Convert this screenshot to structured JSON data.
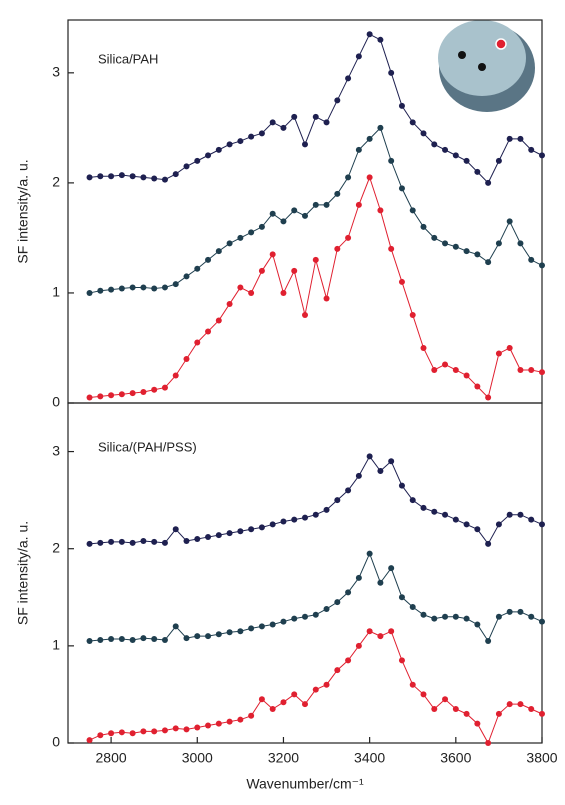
{
  "chart_data": [
    {
      "type": "line",
      "annotation": "Silica/PAH",
      "ylabel": "SF intensity/a. u.",
      "xlim": [
        2700,
        3800
      ],
      "ylim": [
        0,
        3.48
      ],
      "yticks": [
        0,
        1,
        2,
        3
      ],
      "x": [
        2750,
        2775,
        2800,
        2825,
        2850,
        2875,
        2900,
        2925,
        2950,
        2975,
        3000,
        3025,
        3050,
        3075,
        3100,
        3125,
        3150,
        3175,
        3200,
        3225,
        3250,
        3275,
        3300,
        3325,
        3350,
        3375,
        3400,
        3425,
        3450,
        3475,
        3500,
        3525,
        3550,
        3575,
        3600,
        3625,
        3650,
        3675,
        3700,
        3725,
        3750,
        3775,
        3800
      ],
      "series": [
        {
          "color": "#1e2050",
          "values": [
            2.05,
            2.06,
            2.06,
            2.07,
            2.06,
            2.05,
            2.04,
            2.03,
            2.08,
            2.15,
            2.2,
            2.25,
            2.3,
            2.35,
            2.38,
            2.42,
            2.45,
            2.55,
            2.5,
            2.6,
            2.35,
            2.6,
            2.55,
            2.75,
            2.95,
            3.15,
            3.35,
            3.3,
            3.0,
            2.7,
            2.55,
            2.45,
            2.35,
            2.3,
            2.25,
            2.2,
            2.1,
            2.0,
            2.2,
            2.4,
            2.4,
            2.3,
            2.25
          ]
        },
        {
          "color": "#1f3f4f",
          "values": [
            1.0,
            1.02,
            1.03,
            1.04,
            1.05,
            1.05,
            1.04,
            1.05,
            1.08,
            1.15,
            1.22,
            1.3,
            1.38,
            1.45,
            1.5,
            1.55,
            1.6,
            1.72,
            1.65,
            1.75,
            1.7,
            1.8,
            1.8,
            1.9,
            2.05,
            2.3,
            2.4,
            2.5,
            2.2,
            1.95,
            1.75,
            1.6,
            1.5,
            1.45,
            1.42,
            1.38,
            1.35,
            1.28,
            1.45,
            1.65,
            1.45,
            1.3,
            1.25
          ]
        },
        {
          "color": "#e02030",
          "values": [
            0.05,
            0.06,
            0.07,
            0.08,
            0.09,
            0.1,
            0.12,
            0.14,
            0.25,
            0.4,
            0.55,
            0.65,
            0.75,
            0.9,
            1.05,
            1.0,
            1.2,
            1.35,
            1.0,
            1.2,
            0.8,
            1.3,
            0.95,
            1.4,
            1.5,
            1.8,
            2.05,
            1.75,
            1.4,
            1.1,
            0.8,
            0.5,
            0.3,
            0.35,
            0.3,
            0.25,
            0.15,
            0.05,
            0.45,
            0.5,
            0.3,
            0.3,
            0.28
          ]
        }
      ]
    },
    {
      "type": "line",
      "annotation": "Silica/(PAH/PSS)",
      "ylabel": "SF intensity/a. u.",
      "xlabel": "Wavenumber/cm⁻¹",
      "xlim": [
        2700,
        3800
      ],
      "ylim": [
        0,
        3.5
      ],
      "yticks": [
        0,
        1,
        2,
        3
      ],
      "xticks": [
        2800,
        3000,
        3200,
        3400,
        3600,
        3800
      ],
      "x": [
        2750,
        2775,
        2800,
        2825,
        2850,
        2875,
        2900,
        2925,
        2950,
        2975,
        3000,
        3025,
        3050,
        3075,
        3100,
        3125,
        3150,
        3175,
        3200,
        3225,
        3250,
        3275,
        3300,
        3325,
        3350,
        3375,
        3400,
        3425,
        3450,
        3475,
        3500,
        3525,
        3550,
        3575,
        3600,
        3625,
        3650,
        3675,
        3700,
        3725,
        3750,
        3775,
        3800
      ],
      "series": [
        {
          "color": "#1e2050",
          "values": [
            2.05,
            2.06,
            2.07,
            2.07,
            2.06,
            2.08,
            2.07,
            2.06,
            2.2,
            2.08,
            2.1,
            2.12,
            2.14,
            2.16,
            2.18,
            2.2,
            2.22,
            2.25,
            2.28,
            2.3,
            2.32,
            2.35,
            2.4,
            2.5,
            2.6,
            2.75,
            2.95,
            2.8,
            2.9,
            2.65,
            2.5,
            2.42,
            2.38,
            2.35,
            2.3,
            2.25,
            2.2,
            2.05,
            2.25,
            2.35,
            2.35,
            2.3,
            2.25
          ]
        },
        {
          "color": "#1f3f4f",
          "values": [
            1.05,
            1.06,
            1.07,
            1.07,
            1.06,
            1.08,
            1.07,
            1.06,
            1.2,
            1.08,
            1.1,
            1.1,
            1.12,
            1.14,
            1.15,
            1.18,
            1.2,
            1.22,
            1.25,
            1.28,
            1.3,
            1.32,
            1.38,
            1.45,
            1.55,
            1.7,
            1.95,
            1.65,
            1.8,
            1.5,
            1.4,
            1.32,
            1.28,
            1.3,
            1.3,
            1.28,
            1.22,
            1.05,
            1.3,
            1.35,
            1.35,
            1.3,
            1.25
          ]
        },
        {
          "color": "#e02030",
          "values": [
            0.03,
            0.08,
            0.1,
            0.11,
            0.1,
            0.12,
            0.12,
            0.13,
            0.15,
            0.14,
            0.16,
            0.18,
            0.2,
            0.22,
            0.24,
            0.28,
            0.45,
            0.35,
            0.42,
            0.5,
            0.4,
            0.55,
            0.6,
            0.75,
            0.85,
            1.0,
            1.15,
            1.1,
            1.15,
            0.85,
            0.6,
            0.5,
            0.35,
            0.45,
            0.35,
            0.3,
            0.2,
            0.0,
            0.3,
            0.4,
            0.4,
            0.35,
            0.3
          ]
        }
      ]
    }
  ]
}
